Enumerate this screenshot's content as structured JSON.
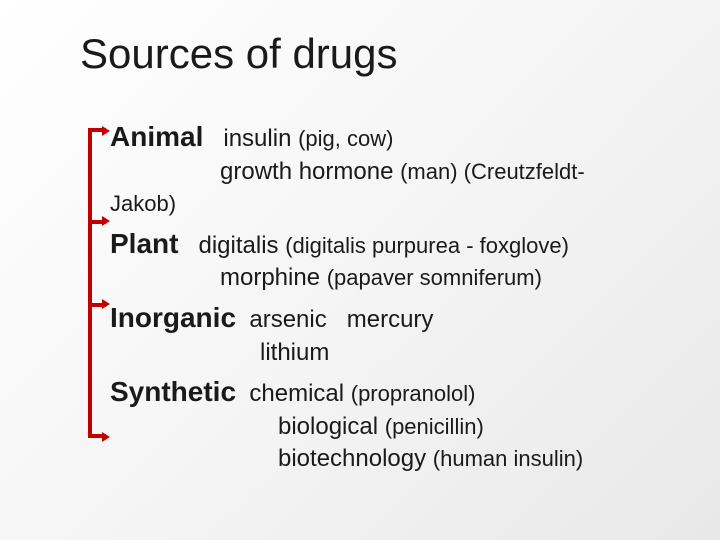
{
  "title": "Sources of drugs",
  "categories": {
    "animal": {
      "label": "Animal",
      "ex1": "insulin",
      "ex1_note": "(pig, cow)",
      "ex2": "growth hormone",
      "ex2_note": "(man) (Creutzfeldt-",
      "ex2_cont": "Jakob)"
    },
    "plant": {
      "label": "Plant",
      "ex1": "digitalis",
      "ex1_note": "(digitalis purpurea - foxglove)",
      "ex2": "morphine",
      "ex2_note": "(papaver somniferum)"
    },
    "inorganic": {
      "label": "Inorganic",
      "ex1": "arsenic",
      "ex2": "mercury",
      "ex3": "lithium"
    },
    "synthetic": {
      "label": "Synthetic",
      "ex1": "chemical",
      "ex1_note": "(propranolol)",
      "ex2": "biological",
      "ex2_note": "(penicillin)",
      "ex3": "biotechnology",
      "ex3_note": "(human insulin)"
    }
  },
  "style": {
    "bracket_color": "#c00000",
    "title_fontsize": 42,
    "category_fontsize": 28,
    "body_fontsize": 24,
    "background_gradient": [
      "#ffffff",
      "#f5f5f5",
      "#e8e8e8"
    ],
    "text_color": "#1a1a1a"
  }
}
